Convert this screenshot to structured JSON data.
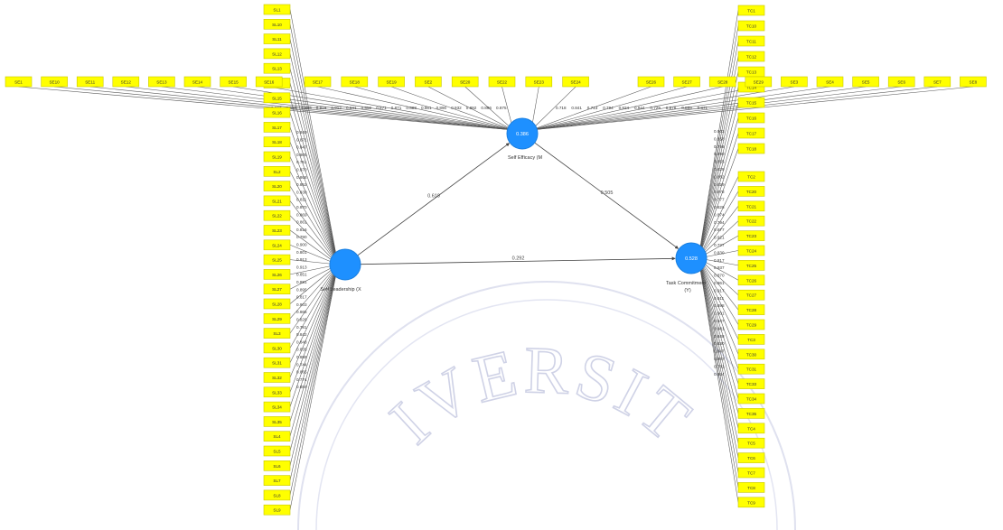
{
  "watermark": {
    "text": "IVERSIT",
    "color": "#d4d6ea"
  },
  "colors": {
    "latent": "#1e90ff",
    "indicator": "#ffff00",
    "line": "#555555"
  },
  "latents": {
    "sl": {
      "name": "Self Leadership (X",
      "value": ""
    },
    "se": {
      "name": "Self Efficacy (M",
      "value": "0.386"
    },
    "tc": {
      "name": "Task Commitment",
      "name2": "(Y)",
      "value": "0.528"
    }
  },
  "paths": [
    {
      "from": "sl",
      "to": "se",
      "value": "0.619"
    },
    {
      "from": "se",
      "to": "tc",
      "value": "0.505"
    },
    {
      "from": "sl",
      "to": "tc",
      "value": "0.292"
    }
  ],
  "se_indicators_left": [
    "SE1",
    "SE10",
    "SE11",
    "SE12",
    "SE13",
    "SE14",
    "SE15",
    "SE16"
  ],
  "se_indicators_mid": [
    "SE17",
    "SE18",
    "SE19",
    "SE2",
    "SE20",
    "SE22",
    "SE23",
    "SE24"
  ],
  "se_indicators_right": [
    "SE26",
    "SE27",
    "SE28",
    "SE29",
    "SE3",
    "SE4",
    "SE5",
    "SE6",
    "SE7",
    "SE8"
  ],
  "sl_indicators": [
    "SL1",
    "SL10",
    "SL11",
    "SL12",
    "SL13",
    "SL14",
    "SL15",
    "SL16",
    "SL17",
    "SL18",
    "SL19",
    "SL2",
    "SL20",
    "SL21",
    "SL22",
    "SL23",
    "SL24",
    "SL25",
    "SL26",
    "SL27",
    "SL28",
    "SL29",
    "SL3",
    "SL30",
    "SL31",
    "SL32",
    "SL33",
    "SL34",
    "SL35",
    "SL4",
    "SL5",
    "SL6",
    "SL7",
    "SL8",
    "SL9"
  ],
  "tc_indicators": [
    "TC1",
    "TC10",
    "TC11",
    "TC12",
    "TC13",
    "TC14",
    "TC15",
    "TC16",
    "TC17",
    "TC18",
    "TC2",
    "TC20",
    "TC21",
    "TC22",
    "TC23",
    "TC24",
    "TC25",
    "TC26",
    "TC27",
    "TC28",
    "TC29",
    "TC3",
    "TC30",
    "TC31",
    "TC33",
    "TC34",
    "TC35",
    "TC4",
    "TC5",
    "TC6",
    "TC7",
    "TC8",
    "TC9"
  ],
  "sl_loadings": [
    "0.940",
    "0.871",
    "0.847",
    "0.805",
    "0.751",
    "0.870",
    "0.868",
    "0.852",
    "0.830",
    "0.811",
    "0.870",
    "0.869",
    "0.861",
    "0.816",
    "0.790",
    "0.900",
    "0.801",
    "0.913",
    "0.913",
    "0.851",
    "0.881",
    "0.895",
    "0.817",
    "0.903",
    "0.865",
    "0.826",
    "0.781",
    "0.842",
    "0.848",
    "0.835",
    "0.888",
    "0.744",
    "0.865",
    "0.774",
    "0.884"
  ],
  "tc_loadings": [
    "0.903",
    "0.858",
    "0.796",
    "0.899",
    "0.855",
    "0.829",
    "0.862",
    "0.829",
    "0.878",
    "0.777",
    "0.826",
    "0.874",
    "0.794",
    "0.877",
    "0.921",
    "0.727",
    "0.830",
    "0.817",
    "0.937",
    "0.870",
    "0.861",
    "0.917",
    "0.911",
    "0.898",
    "0.901",
    "0.847",
    "0.881",
    "0.848",
    "0.830",
    "0.847",
    "0.867",
    "0.781",
    "0.924"
  ],
  "se_loadings": [
    "0.907",
    "0.889",
    "0.889",
    "0.919",
    "0.912",
    "0.841",
    "0.855",
    "0.871",
    "0.871",
    "0.888",
    "0.861",
    "0.890",
    "0.932",
    "0.892",
    "0.896",
    "0.875",
    "0.718",
    "0.841",
    "0.713",
    "0.794",
    "0.834",
    "0.844",
    "0.729",
    "0.876",
    "0.889",
    "0.871"
  ]
}
